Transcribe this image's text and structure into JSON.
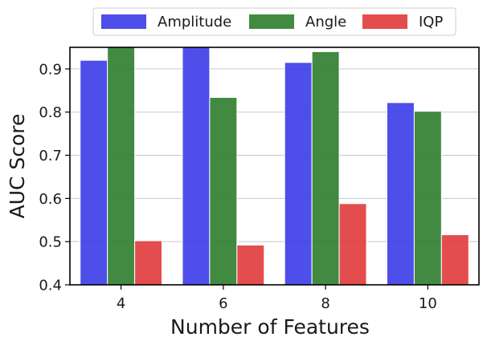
{
  "chart_data": {
    "type": "bar",
    "title": "",
    "xlabel": "Number of Features",
    "ylabel": "AUC Score",
    "categories": [
      "4",
      "6",
      "8",
      "10"
    ],
    "ylim": [
      0.4,
      0.95
    ],
    "yticks": [
      0.4,
      0.5,
      0.6,
      0.7,
      0.8,
      0.9
    ],
    "ytick_labels": [
      "0.4",
      "0.5",
      "0.6",
      "0.7",
      "0.8",
      "0.9"
    ],
    "grid": "horizontal",
    "legend": "top-center",
    "series": [
      {
        "name": "Amplitude",
        "color": "#3b3be8",
        "values": [
          0.92,
          0.95,
          0.915,
          0.822
        ]
      },
      {
        "name": "Angle",
        "color": "#2e7d2e",
        "values": [
          0.95,
          0.834,
          0.94,
          0.802
        ]
      },
      {
        "name": "IQP",
        "color": "#e03a3a",
        "values": [
          0.502,
          0.492,
          0.588,
          0.516
        ]
      }
    ]
  }
}
